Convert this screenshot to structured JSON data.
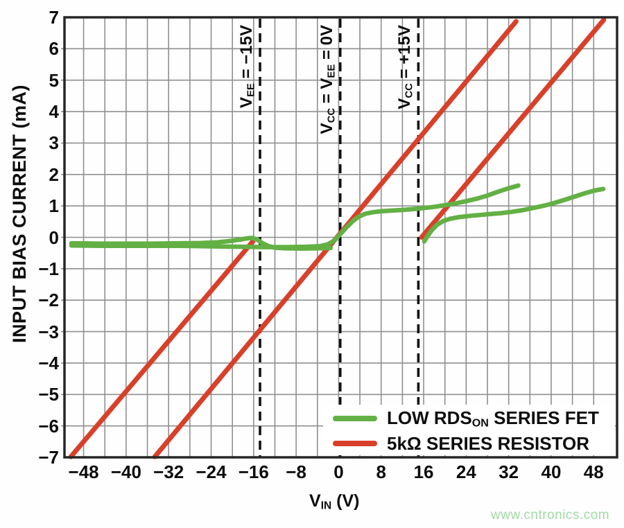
{
  "page": {
    "watermark": "www.cntronics.com"
  },
  "chart_data": {
    "type": "line",
    "title": "",
    "ylabel": "INPUT BIAS CURRENT (mA)",
    "xlabel_segments": [
      {
        "t": "V"
      },
      {
        "s": "IN"
      },
      {
        "t": " (V)"
      }
    ],
    "xlim": [
      -51.6,
      52.4
    ],
    "ylim": [
      -7,
      7
    ],
    "grid": {
      "on": true,
      "x_step": 4,
      "y_step": 1
    },
    "x_ticks": [
      {
        "v": -48,
        "label": "−48"
      },
      {
        "v": -40,
        "label": "−40"
      },
      {
        "v": -32,
        "label": "−32"
      },
      {
        "v": -24,
        "label": "−24"
      },
      {
        "v": -16,
        "label": "−16"
      },
      {
        "v": -8,
        "label": "−8"
      },
      {
        "v": 0,
        "label": "0"
      },
      {
        "v": 8,
        "label": "8"
      },
      {
        "v": 16,
        "label": "16"
      },
      {
        "v": 24,
        "label": "24"
      },
      {
        "v": 32,
        "label": "32"
      },
      {
        "v": 40,
        "label": "40"
      },
      {
        "v": 48,
        "label": "48"
      }
    ],
    "y_ticks": [
      {
        "v": 7,
        "label": "7"
      },
      {
        "v": 6,
        "label": "6"
      },
      {
        "v": 5,
        "label": "5"
      },
      {
        "v": 4,
        "label": "4"
      },
      {
        "v": 3,
        "label": "3"
      },
      {
        "v": 2,
        "label": "2"
      },
      {
        "v": 1,
        "label": "1"
      },
      {
        "v": 0,
        "label": "0"
      },
      {
        "v": -1,
        "label": "−1"
      },
      {
        "v": -2,
        "label": "−2"
      },
      {
        "v": -3,
        "label": "−3"
      },
      {
        "v": -4,
        "label": "−4"
      },
      {
        "v": -5,
        "label": "−5"
      },
      {
        "v": -6,
        "label": "−6"
      },
      {
        "v": -7,
        "label": "−7"
      }
    ],
    "colors": {
      "fet_green": "#63b045",
      "resistor_red": "#d8402a",
      "grid": "#8f8f8f",
      "frame": "#262626",
      "dashed": "#111111",
      "text": "#0d0d0d",
      "watermark": "#a3d9a5"
    },
    "vlines": [
      {
        "x": -14.8,
        "label_segments": [
          {
            "t": "V"
          },
          {
            "s": "EE"
          },
          {
            "t": " = −15V"
          }
        ]
      },
      {
        "x": 0.3,
        "label_segments": [
          {
            "t": "V"
          },
          {
            "s": "CC"
          },
          {
            "t": " = V"
          },
          {
            "s": "EE"
          },
          {
            "t": " = 0V"
          }
        ]
      },
      {
        "x": 15.0,
        "label_segments": [
          {
            "t": "V"
          },
          {
            "s": "CC"
          },
          {
            "t": " = +15V"
          }
        ]
      }
    ],
    "series": [
      {
        "name": "LOW RDSON SERIES FET",
        "color_key": "fet_green",
        "branches": [
          {
            "id": "fet-0v-supply",
            "points": [
              [
                -50.3,
                -0.26
              ],
              [
                -45,
                -0.27
              ],
              [
                -40,
                -0.27
              ],
              [
                -35,
                -0.27
              ],
              [
                -30,
                -0.27
              ],
              [
                -26,
                -0.28
              ],
              [
                -22,
                -0.29
              ],
              [
                -18,
                -0.3
              ],
              [
                -14,
                -0.31
              ],
              [
                -10,
                -0.31
              ],
              [
                -6,
                -0.3
              ],
              [
                -3.5,
                -0.28
              ],
              [
                -2,
                -0.22
              ],
              [
                -0.8,
                -0.1
              ],
              [
                0.3,
                0.1
              ],
              [
                1.5,
                0.32
              ],
              [
                2.7,
                0.52
              ],
              [
                3.8,
                0.66
              ],
              [
                5,
                0.75
              ],
              [
                6.5,
                0.8
              ],
              [
                8,
                0.83
              ],
              [
                10,
                0.85
              ],
              [
                12,
                0.87
              ],
              [
                14,
                0.9
              ],
              [
                16,
                0.93
              ],
              [
                18,
                0.97
              ],
              [
                20,
                1.02
              ],
              [
                22,
                1.08
              ],
              [
                24,
                1.15
              ],
              [
                26,
                1.23
              ],
              [
                28,
                1.33
              ],
              [
                30,
                1.45
              ],
              [
                32,
                1.56
              ],
              [
                33.8,
                1.65
              ]
            ]
          },
          {
            "id": "fet-pm15v-left",
            "points": [
              [
                -50.3,
                -0.19
              ],
              [
                -45,
                -0.2
              ],
              [
                -40,
                -0.2
              ],
              [
                -35,
                -0.2
              ],
              [
                -30,
                -0.19
              ],
              [
                -26,
                -0.18
              ],
              [
                -23,
                -0.16
              ],
              [
                -20.5,
                -0.12
              ],
              [
                -18.5,
                -0.07
              ],
              [
                -17.2,
                -0.03
              ],
              [
                -16.2,
                -0.02
              ],
              [
                -15.3,
                -0.08
              ],
              [
                -14.3,
                -0.19
              ],
              [
                -13.2,
                -0.28
              ],
              [
                -12,
                -0.33
              ],
              [
                -10,
                -0.35
              ],
              [
                -7,
                -0.36
              ],
              [
                -4,
                -0.35
              ],
              [
                -1.5,
                -0.34
              ]
            ]
          },
          {
            "id": "fet-pm15v-right",
            "points": [
              [
                16.1,
                -0.13
              ],
              [
                16.7,
                0.03
              ],
              [
                17.5,
                0.22
              ],
              [
                18.5,
                0.4
              ],
              [
                19.7,
                0.52
              ],
              [
                21,
                0.59
              ],
              [
                22.5,
                0.64
              ],
              [
                24.5,
                0.68
              ],
              [
                26.5,
                0.71
              ],
              [
                28.5,
                0.74
              ],
              [
                30.5,
                0.77
              ],
              [
                32.5,
                0.81
              ],
              [
                34.5,
                0.86
              ],
              [
                36.5,
                0.93
              ],
              [
                38.5,
                1.0
              ],
              [
                40.5,
                1.09
              ],
              [
                42.5,
                1.19
              ],
              [
                44.5,
                1.3
              ],
              [
                46.5,
                1.41
              ],
              [
                48.2,
                1.49
              ],
              [
                49.8,
                1.54
              ]
            ]
          }
        ]
      },
      {
        "name": "5kΩ SERIES RESISTOR",
        "color_key": "resistor_red",
        "branches": [
          {
            "id": "res-pm15v-left",
            "points": [
              [
                -50.4,
                -6.98
              ],
              [
                -16.1,
                -0.12
              ]
            ]
          },
          {
            "id": "res-0v-supply",
            "points": [
              [
                -34.6,
                -6.98
              ],
              [
                33.4,
                6.87
              ]
            ]
          },
          {
            "id": "res-pm15v-right",
            "points": [
              [
                15.6,
                0.0
              ],
              [
                49.9,
                6.92
              ]
            ]
          }
        ]
      }
    ],
    "legend": {
      "position": "bottom-right",
      "items": [
        {
          "swatch": "fet_green",
          "label_segments": [
            {
              "t": "LOW RDS"
            },
            {
              "s": "ON"
            },
            {
              "t": " SERIES FET"
            }
          ]
        },
        {
          "swatch": "resistor_red",
          "label_segments": [
            {
              "t": "5kΩ SERIES RESISTOR"
            }
          ]
        }
      ]
    }
  }
}
